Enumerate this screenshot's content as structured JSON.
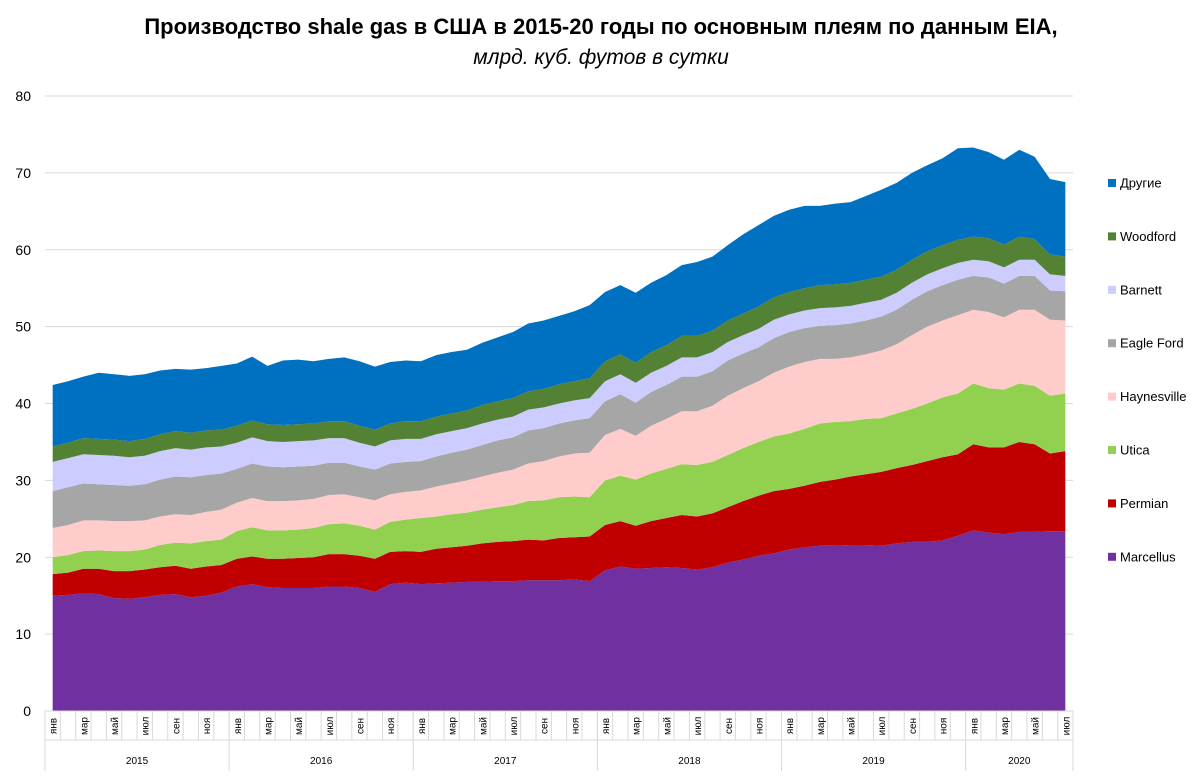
{
  "chart_data": {
    "type": "area",
    "stacked": true,
    "title": "Производство shale gas в США в 2015-20 годы по основным плеям по данным EIA,",
    "subtitle": "млрд. куб. футов в сутки",
    "ylim": [
      0,
      80
    ],
    "yticks": [
      "0",
      "10",
      "20",
      "30",
      "40",
      "50",
      "60",
      "70",
      "80"
    ],
    "grid": true,
    "legend_position": "right",
    "month_labels": [
      "янв",
      "мар",
      "май",
      "июл",
      "сен",
      "ноя"
    ],
    "year_labels": [
      "2015",
      "2016",
      "2017",
      "2018",
      "2019",
      "2020"
    ],
    "n_months": 67,
    "series": [
      {
        "name": "Marcellus",
        "color": "#7030A0",
        "values": [
          15,
          15.1,
          15.3,
          15.2,
          14.7,
          14.6,
          14.8,
          15.1,
          15.2,
          14.8,
          15,
          15.4,
          16.2,
          16.5,
          16.1,
          16,
          16,
          16,
          16.2,
          16.2,
          16,
          15.5,
          16.5,
          16.7,
          16.5,
          16.6,
          16.7,
          16.8,
          16.8,
          16.9,
          16.9,
          17,
          17,
          17,
          17.1,
          16.9,
          18.3,
          18.8,
          18.5,
          18.6,
          18.7,
          18.6,
          18.4,
          18.7,
          19.3,
          19.7,
          20.2,
          20.5,
          21,
          21.3,
          21.5,
          21.5,
          21.6,
          21.6,
          21.5,
          21.8,
          22,
          22,
          22.2,
          22.8,
          23.5,
          23.2,
          23,
          23.3,
          23.3,
          23.4,
          23.4
        ]
      },
      {
        "name": "Permian",
        "color": "#C00000",
        "values": [
          2.8,
          2.9,
          3.2,
          3.3,
          3.5,
          3.6,
          3.6,
          3.6,
          3.7,
          3.7,
          3.8,
          3.6,
          3.6,
          3.6,
          3.7,
          3.8,
          3.9,
          4,
          4.2,
          4.2,
          4.2,
          4.3,
          4.2,
          4.1,
          4.2,
          4.5,
          4.6,
          4.7,
          5,
          5.1,
          5.2,
          5.3,
          5.2,
          5.5,
          5.5,
          5.8,
          5.9,
          5.9,
          5.6,
          6.1,
          6.4,
          6.9,
          6.9,
          7,
          7.2,
          7.6,
          7.8,
          8.1,
          7.9,
          8,
          8.3,
          8.6,
          8.9,
          9.2,
          9.6,
          9.8,
          10,
          10.5,
          10.8,
          10.6,
          11.2,
          11.1,
          11.3,
          11.7,
          11.4,
          10.1,
          10.4
        ]
      },
      {
        "name": "Utica",
        "color": "#92D050",
        "values": [
          2.2,
          2.3,
          2.3,
          2.4,
          2.6,
          2.6,
          2.6,
          2.9,
          3,
          3.3,
          3.3,
          3.3,
          3.6,
          3.8,
          3.7,
          3.7,
          3.7,
          3.8,
          3.9,
          4,
          3.9,
          3.8,
          3.9,
          4.1,
          4.4,
          4.2,
          4.3,
          4.3,
          4.4,
          4.5,
          4.7,
          5,
          5.2,
          5.3,
          5.3,
          5.1,
          5.8,
          5.9,
          6,
          6.2,
          6.4,
          6.6,
          6.7,
          6.7,
          6.8,
          6.9,
          7,
          7.1,
          7.2,
          7.4,
          7.6,
          7.5,
          7.2,
          7.2,
          7,
          7.1,
          7.3,
          7.5,
          7.8,
          7.9,
          7.9,
          7.7,
          7.5,
          7.6,
          7.6,
          7.5,
          7.5
        ]
      },
      {
        "name": "Haynesville",
        "color": "#FFCCCC",
        "values": [
          3.8,
          3.9,
          4,
          3.9,
          3.9,
          3.9,
          3.8,
          3.7,
          3.7,
          3.7,
          3.8,
          3.9,
          3.7,
          3.8,
          3.8,
          3.8,
          3.8,
          3.8,
          3.8,
          3.8,
          3.7,
          3.8,
          3.6,
          3.6,
          3.6,
          3.9,
          4,
          4.2,
          4.3,
          4.5,
          4.6,
          4.9,
          5.1,
          5.3,
          5.6,
          5.8,
          5.9,
          6.1,
          5.7,
          6.2,
          6.5,
          6.9,
          7,
          7.3,
          7.7,
          7.8,
          7.9,
          8.3,
          8.7,
          8.7,
          8.4,
          8.2,
          8.3,
          8.4,
          8.8,
          9,
          9.6,
          10,
          10,
          10.2,
          9.6,
          9.9,
          9.4,
          9.6,
          9.9,
          9.9,
          9.5
        ]
      },
      {
        "name": "Eagle Ford",
        "color": "#A6A6A6",
        "values": [
          4.8,
          4.9,
          4.8,
          4.7,
          4.7,
          4.6,
          4.7,
          4.8,
          4.9,
          4.9,
          4.8,
          4.7,
          4.4,
          4.5,
          4.5,
          4.4,
          4.4,
          4.3,
          4.2,
          4.1,
          4,
          4,
          4,
          3.9,
          3.8,
          3.9,
          4,
          4,
          4.1,
          4.2,
          4.2,
          4.3,
          4.3,
          4.3,
          4.3,
          4.5,
          4.4,
          4.5,
          4.3,
          4.4,
          4.4,
          4.5,
          4.5,
          4.5,
          4.6,
          4.5,
          4.4,
          4.5,
          4.5,
          4.4,
          4.3,
          4.4,
          4.4,
          4.4,
          4.4,
          4.5,
          4.6,
          4.6,
          4.6,
          4.6,
          4.4,
          4.5,
          4.4,
          4.4,
          4.4,
          3.8,
          3.8
        ]
      },
      {
        "name": "Barnett",
        "color": "#CCCCFF",
        "values": [
          3.8,
          3.8,
          3.8,
          3.8,
          3.8,
          3.7,
          3.7,
          3.7,
          3.7,
          3.6,
          3.6,
          3.5,
          3.4,
          3.4,
          3.3,
          3.3,
          3.3,
          3.3,
          3.2,
          3.2,
          3.1,
          3,
          3,
          3,
          2.9,
          2.9,
          2.8,
          2.8,
          2.8,
          2.7,
          2.7,
          2.7,
          2.7,
          2.6,
          2.6,
          2.6,
          2.6,
          2.6,
          2.6,
          2.5,
          2.5,
          2.5,
          2.5,
          2.5,
          2.4,
          2.4,
          2.4,
          2.4,
          2.3,
          2.3,
          2.3,
          2.3,
          2.3,
          2.3,
          2.2,
          2.2,
          2.2,
          2.2,
          2.2,
          2.2,
          2.1,
          2.1,
          2.1,
          2.1,
          2.1,
          2.1,
          2
        ]
      },
      {
        "name": "Woodford",
        "color": "#548235",
        "values": [
          2,
          2,
          2.1,
          2.1,
          2.1,
          2.1,
          2.2,
          2.2,
          2.2,
          2.2,
          2.2,
          2.2,
          2.2,
          2.2,
          2.2,
          2.2,
          2.2,
          2.2,
          2.2,
          2.2,
          2.2,
          2.2,
          2.2,
          2.3,
          2.3,
          2.3,
          2.3,
          2.3,
          2.4,
          2.4,
          2.4,
          2.4,
          2.4,
          2.5,
          2.5,
          2.6,
          2.6,
          2.6,
          2.6,
          2.7,
          2.7,
          2.8,
          2.8,
          2.8,
          2.8,
          2.8,
          2.9,
          2.9,
          2.9,
          2.9,
          3,
          3,
          3,
          3,
          3,
          3,
          3,
          3,
          3,
          3,
          3,
          3,
          3,
          3,
          2.7,
          2.6,
          2.5
        ]
      },
      {
        "name": "Другие",
        "color": "#0070C0",
        "values": [
          8,
          8,
          8,
          8.6,
          8.5,
          8.5,
          8.4,
          8.3,
          8.1,
          8.2,
          8.1,
          8.3,
          8.1,
          8.3,
          7.6,
          8.4,
          8.4,
          8.1,
          8.1,
          8.3,
          8.4,
          8.2,
          8,
          7.9,
          7.8,
          8,
          8,
          7.9,
          8.1,
          8.3,
          8.6,
          8.8,
          8.9,
          8.9,
          9.1,
          9.5,
          9,
          9,
          9.1,
          9,
          9.1,
          9.2,
          9.6,
          9.6,
          9.8,
          10.3,
          10.6,
          10.6,
          10.7,
          10.7,
          10.3,
          10.5,
          10.5,
          10.9,
          11.3,
          11.3,
          11.3,
          11.2,
          11.3,
          11.9,
          11.6,
          11.2,
          11,
          11.3,
          10.7,
          9.8,
          9.7
        ]
      }
    ]
  }
}
